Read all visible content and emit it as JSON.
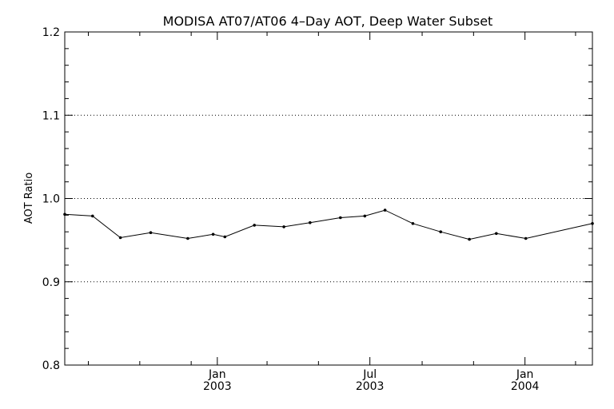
{
  "chart_data": {
    "type": "line",
    "title": "MODISA AT07/AT06 4–Day AOT, Deep Water Subset",
    "xlabel": "",
    "ylabel": "AOT Ratio",
    "ylim": [
      0.8,
      1.2
    ],
    "xlim": [
      "2002-07-04",
      "2004-03-21"
    ],
    "grid": "horizontal dotted",
    "y_ticks": [
      "0.8",
      "0.9",
      "1.0",
      "1.1",
      "1.2"
    ],
    "x_major_ticks": [
      {
        "date": "2003-01-01",
        "line1": "Jan",
        "line2": "2003"
      },
      {
        "date": "2003-07-01",
        "line1": "Jul",
        "line2": "2003"
      },
      {
        "date": "2004-01-01",
        "line1": "Jan",
        "line2": "2004"
      }
    ],
    "x_minor_ticks": [
      "2002-08-01",
      "2002-10-01",
      "2002-12-01",
      "2003-03-01",
      "2003-05-01",
      "2003-09-01",
      "2003-11-01",
      "2004-03-01"
    ],
    "series": [
      {
        "color": "#000000",
        "x": [
          "2002-07-04",
          "2002-08-06",
          "2002-09-08",
          "2002-10-14",
          "2002-11-27",
          "2002-12-27",
          "2003-01-10",
          "2003-02-14",
          "2003-03-21",
          "2003-04-21",
          "2003-05-27",
          "2003-06-25",
          "2003-07-19",
          "2003-08-21",
          "2003-09-23",
          "2003-10-27",
          "2003-11-28",
          "2004-01-02",
          "2004-03-21"
        ],
        "y": [
          0.981,
          0.979,
          0.953,
          0.959,
          0.952,
          0.957,
          0.954,
          0.968,
          0.966,
          0.971,
          0.977,
          0.979,
          0.986,
          0.97,
          0.96,
          0.951,
          0.958,
          0.952,
          0.97
        ]
      }
    ]
  }
}
